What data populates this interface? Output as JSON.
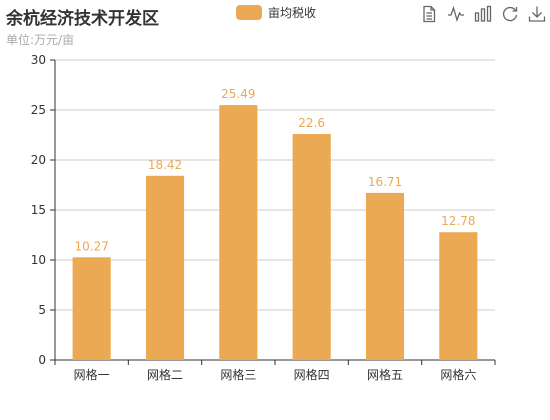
{
  "title": "余杭经济技术开发区",
  "subtitle": "单位:万元/亩",
  "legend": {
    "label": "亩均税收"
  },
  "toolbox": [
    {
      "name": "data-view-icon"
    },
    {
      "name": "line-chart-icon"
    },
    {
      "name": "bar-chart-icon"
    },
    {
      "name": "restore-icon"
    },
    {
      "name": "download-icon"
    }
  ],
  "colors": {
    "bar": "#EBA954",
    "axis": "#333333",
    "grid": "#cccccc"
  },
  "chart_data": {
    "type": "bar",
    "title": "余杭经济技术开发区",
    "subtitle": "单位:万元/亩",
    "categories": [
      "网格一",
      "网格二",
      "网格三",
      "网格四",
      "网格五",
      "网格六"
    ],
    "series": [
      {
        "name": "亩均税收",
        "values": [
          10.27,
          18.42,
          25.49,
          22.6,
          16.71,
          12.78
        ],
        "labels": [
          "10.27",
          "18.42",
          "25.49",
          "22.6",
          "16.71",
          "12.78"
        ]
      }
    ],
    "ylim": [
      0,
      30
    ],
    "yticks": [
      0,
      5,
      10,
      15,
      20,
      25,
      30
    ],
    "grid": true,
    "legend_position": "top-center",
    "data_labels": true
  }
}
